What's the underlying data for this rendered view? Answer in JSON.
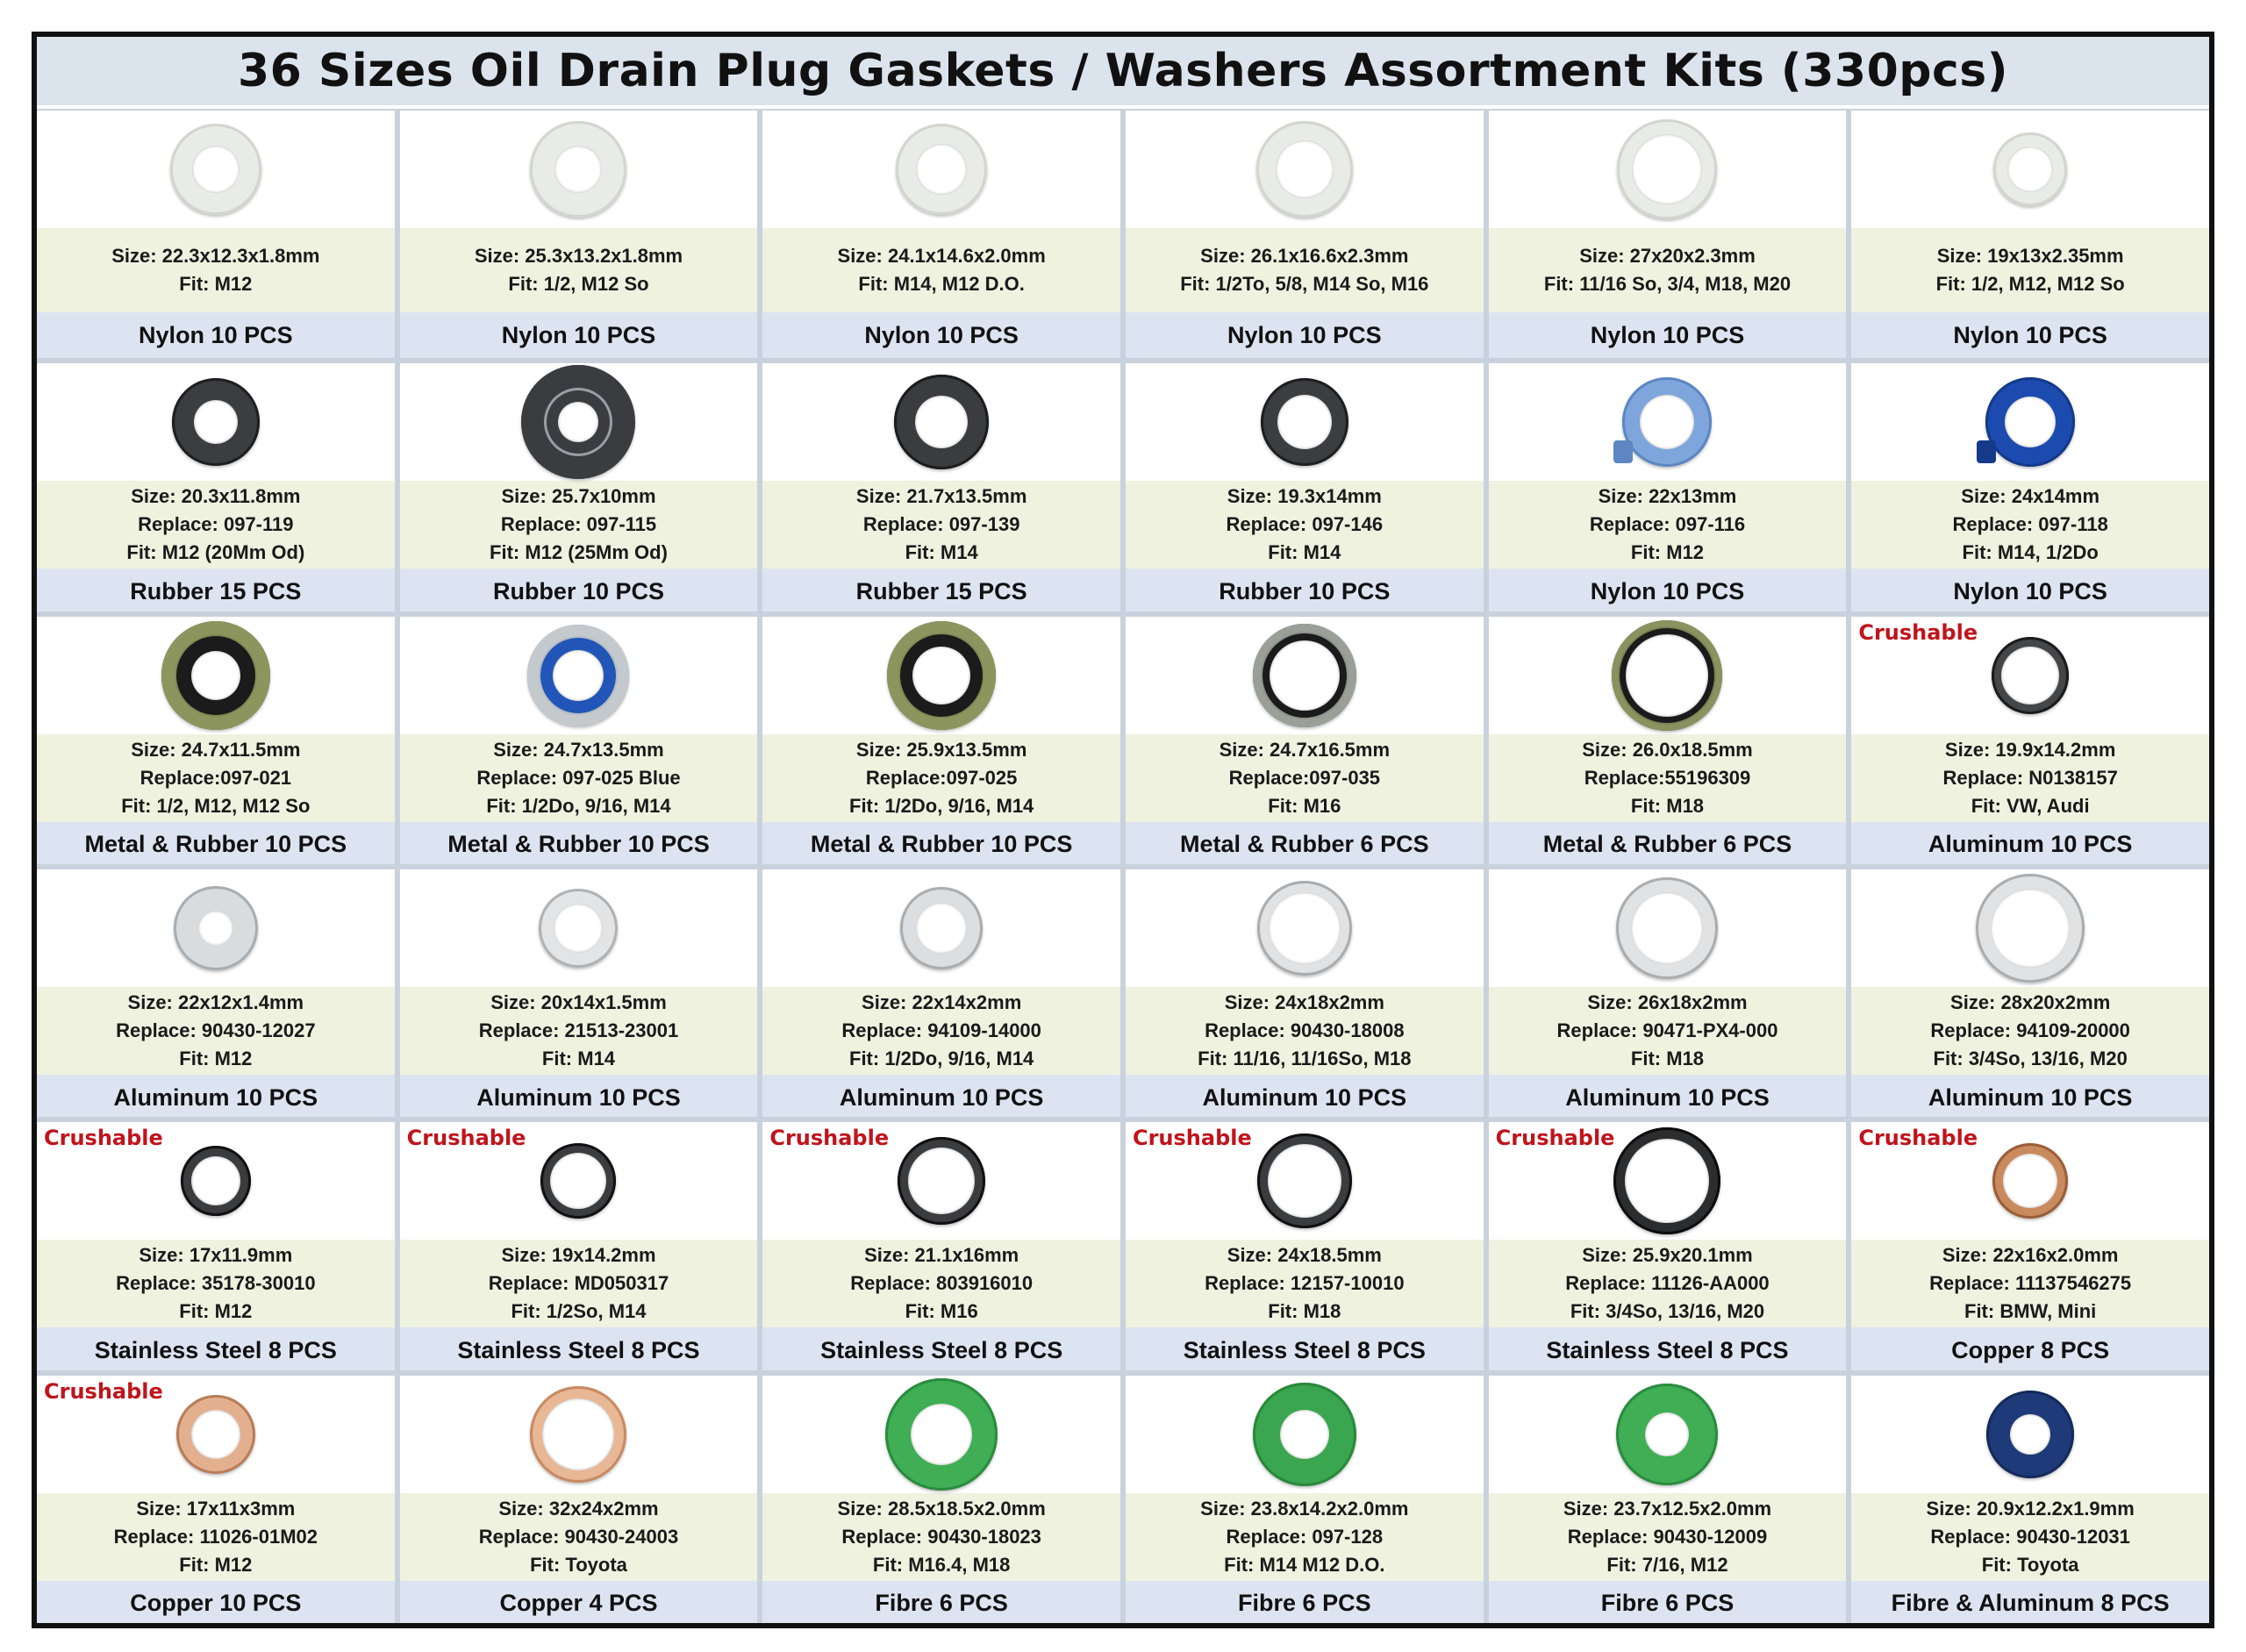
{
  "title": "36 Sizes Oil Drain Plug Gaskets / Washers Assortment Kits (330pcs)",
  "colors": {
    "crushable": "#c0141c",
    "info_bg": "#eef2df",
    "label_bg": "#dde4f1"
  },
  "rows": [
    {
      "items": [
        {
          "lines": [
            "Size: 22.3x12.3x1.8mm",
            "Fit: M12"
          ],
          "label": "Nylon 10 PCS",
          "crushable": "",
          "icon": "nylon-white-washer-icon"
        },
        {
          "lines": [
            "Size: 25.3x13.2x1.8mm",
            "Fit: 1/2, M12 So"
          ],
          "label": "Nylon 10 PCS",
          "crushable": "",
          "icon": "nylon-white-washer-icon"
        },
        {
          "lines": [
            "Size: 24.1x14.6x2.0mm",
            "Fit: M14, M12 D.O."
          ],
          "label": "Nylon 10 PCS",
          "crushable": "",
          "icon": "nylon-white-washer-icon"
        },
        {
          "lines": [
            "Size: 26.1x16.6x2.3mm",
            "Fit: 1/2To, 5/8, M14 So, M16"
          ],
          "label": "Nylon 10 PCS",
          "crushable": "",
          "icon": "nylon-white-washer-icon"
        },
        {
          "lines": [
            "Size: 27x20x2.3mm",
            "Fit: 11/16 So, 3/4, M18,  M20"
          ],
          "label": "Nylon 10 PCS",
          "crushable": "",
          "icon": "nylon-white-washer-icon"
        },
        {
          "lines": [
            "Size: 19x13x2.35mm",
            "Fit: 1/2, M12, M12 So"
          ],
          "label": "Nylon 10 PCS",
          "crushable": "",
          "icon": "nylon-white-washer-icon"
        }
      ]
    },
    {
      "items": [
        {
          "lines": [
            "Size: 20.3x11.8mm",
            "Replace: 097-119",
            "Fit: M12 (20Mm Od)"
          ],
          "label": "Rubber 15 PCS",
          "crushable": "",
          "icon": "rubber-washer-icon"
        },
        {
          "lines": [
            "Size: 25.7x10mm",
            "Replace: 097-115",
            "Fit:  M12 (25Mm Od)"
          ],
          "label": "Rubber 10 PCS",
          "crushable": "",
          "icon": "rubber-washer-icon"
        },
        {
          "lines": [
            "Size: 21.7x13.5mm",
            "Replace: 097-139",
            "Fit: M14"
          ],
          "label": "Rubber 15 PCS",
          "crushable": "",
          "icon": "rubber-washer-icon"
        },
        {
          "lines": [
            "Size: 19.3x14mm",
            "Replace: 097-146",
            "Fit: M14"
          ],
          "label": "Rubber 10 PCS",
          "crushable": "",
          "icon": "rubber-washer-icon"
        },
        {
          "lines": [
            "Size: 22x13mm",
            "Replace: 097-116",
            "Fit: M12"
          ],
          "label": "Nylon 10 PCS",
          "crushable": "",
          "icon": "blue-nylon-gear-washer-icon"
        },
        {
          "lines": [
            "Size: 24x14mm",
            "Replace: 097-118",
            "Fit: M14, 1/2Do"
          ],
          "label": "Nylon 10 PCS",
          "crushable": "",
          "icon": "blue-nylon-gear-washer-icon"
        }
      ]
    },
    {
      "items": [
        {
          "lines": [
            "Size: 24.7x11.5mm",
            "Replace:097-021",
            "Fit: 1/2, M12, M12 So"
          ],
          "label": "Metal & Rubber 10 PCS",
          "crushable": "",
          "icon": "metal-rubber-washer-icon"
        },
        {
          "lines": [
            "Size: 24.7x13.5mm",
            "Replace: 097-025 Blue",
            "Fit: 1/2Do, 9/16, M14"
          ],
          "label": "Metal & Rubber 10 PCS",
          "crushable": "",
          "icon": "metal-blue-rubber-washer-icon"
        },
        {
          "lines": [
            "Size: 25.9x13.5mm",
            "Replace:097-025",
            "Fit: 1/2Do, 9/16, M14"
          ],
          "label": "Metal & Rubber 10 PCS",
          "crushable": "",
          "icon": "metal-rubber-washer-icon"
        },
        {
          "lines": [
            "Size: 24.7x16.5mm",
            "Replace:097-035",
            "Fit: M16"
          ],
          "label": "Metal & Rubber 6 PCS",
          "crushable": "",
          "icon": "metal-rubber-washer-icon"
        },
        {
          "lines": [
            "Size: 26.0x18.5mm",
            "Replace:55196309",
            "Fit: M18"
          ],
          "label": "Metal & Rubber 6 PCS",
          "crushable": "",
          "icon": "metal-rubber-washer-icon"
        },
        {
          "lines": [
            "Size: 19.9x14.2mm",
            "Replace: N0138157",
            "Fit: VW, Audi"
          ],
          "label": "Aluminum 10 PCS",
          "crushable": "Crushable",
          "icon": "crushable-steel-washer-icon"
        }
      ]
    },
    {
      "items": [
        {
          "lines": [
            "Size: 22x12x1.4mm",
            "Replace: 90430-12027",
            "Fit: M12"
          ],
          "label": "Aluminum 10 PCS",
          "crushable": "",
          "icon": "aluminum-washer-icon"
        },
        {
          "lines": [
            "Size: 20x14x1.5mm",
            "Replace: 21513-23001",
            "Fit: M14"
          ],
          "label": "Aluminum 10 PCS",
          "crushable": "",
          "icon": "aluminum-washer-icon"
        },
        {
          "lines": [
            "Size: 22x14x2mm",
            "Replace: 94109-14000",
            "Fit: 1/2Do, 9/16, M14"
          ],
          "label": "Aluminum 10 PCS",
          "crushable": "",
          "icon": "aluminum-washer-icon"
        },
        {
          "lines": [
            "Size: 24x18x2mm",
            "Replace: 90430-18008",
            "Fit: 11/16, 11/16So, M18"
          ],
          "label": "Aluminum 10 PCS",
          "crushable": "",
          "icon": "aluminum-washer-icon"
        },
        {
          "lines": [
            "Size: 26x18x2mm",
            "Replace: 90471-PX4-000",
            "Fit: M18"
          ],
          "label": "Aluminum 10 PCS",
          "crushable": "",
          "icon": "aluminum-washer-icon"
        },
        {
          "lines": [
            "Size: 28x20x2mm",
            "Replace: 94109-20000",
            "Fit: 3/4So, 13/16, M20"
          ],
          "label": "Aluminum 10 PCS",
          "crushable": "",
          "icon": "aluminum-washer-icon"
        }
      ]
    },
    {
      "items": [
        {
          "lines": [
            "Size: 17x11.9mm",
            "Replace: 35178-30010",
            "Fit: M12"
          ],
          "label": "Stainless Steel 8 PCS",
          "crushable": "Crushable",
          "icon": "crushable-steel-washer-icon"
        },
        {
          "lines": [
            "Size: 19x14.2mm",
            "Replace: MD050317",
            "Fit: 1/2So, M14"
          ],
          "label": "Stainless Steel 8 PCS",
          "crushable": "Crushable",
          "icon": "crushable-steel-washer-icon"
        },
        {
          "lines": [
            "Size: 21.1x16mm",
            "Replace: 803916010",
            "Fit: M16"
          ],
          "label": "Stainless Steel 8 PCS",
          "crushable": "Crushable",
          "icon": "crushable-steel-washer-icon"
        },
        {
          "lines": [
            "Size: 24x18.5mm",
            "Replace: 12157-10010",
            "Fit: M18"
          ],
          "label": "Stainless Steel 8 PCS",
          "crushable": "Crushable",
          "icon": "crushable-steel-washer-icon"
        },
        {
          "lines": [
            "Size: 25.9x20.1mm",
            "Replace: 11126-AA000",
            "Fit: 3/4So, 13/16, M20"
          ],
          "label": "Stainless Steel 8 PCS",
          "crushable": "Crushable",
          "icon": "crushable-steel-washer-icon"
        },
        {
          "lines": [
            "Size: 22x16x2.0mm",
            "Replace: 11137546275",
            "Fit: BMW, Mini"
          ],
          "label": "Copper 8 PCS",
          "crushable": "Crushable",
          "icon": "crushable-copper-washer-icon"
        }
      ]
    },
    {
      "items": [
        {
          "lines": [
            "Size: 17x11x3mm",
            "Replace: 11026-01M02",
            "Fit: M12"
          ],
          "label": "Copper 10 PCS",
          "crushable": "Crushable",
          "icon": "crushable-copper-washer-icon"
        },
        {
          "lines": [
            "Size: 32x24x2mm",
            "Replace: 90430-24003",
            "Fit: Toyota"
          ],
          "label": "Copper 4 PCS",
          "crushable": "",
          "icon": "copper-washer-icon"
        },
        {
          "lines": [
            "Size: 28.5x18.5x2.0mm",
            "Replace:  90430-18023",
            "Fit: M16.4, M18"
          ],
          "label": "Fibre 6 PCS",
          "crushable": "",
          "icon": "green-fibre-washer-icon"
        },
        {
          "lines": [
            "Size: 23.8x14.2x2.0mm",
            "Replace:  097-128",
            "Fit: M14 M12 D.O."
          ],
          "label": "Fibre 6 PCS",
          "crushable": "",
          "icon": "green-fibre-washer-icon"
        },
        {
          "lines": [
            "Size: 23.7x12.5x2.0mm",
            "Replace:  90430-12009",
            "Fit: 7/16, M12"
          ],
          "label": "Fibre 6 PCS",
          "crushable": "",
          "icon": "green-fibre-washer-icon"
        },
        {
          "lines": [
            "Size: 20.9x12.2x1.9mm",
            "Replace:  90430-12031",
            "Fit: Toyota"
          ],
          "label": "Fibre & Aluminum 8 PCS",
          "crushable": "",
          "icon": "navy-fibre-washer-icon"
        }
      ]
    }
  ]
}
